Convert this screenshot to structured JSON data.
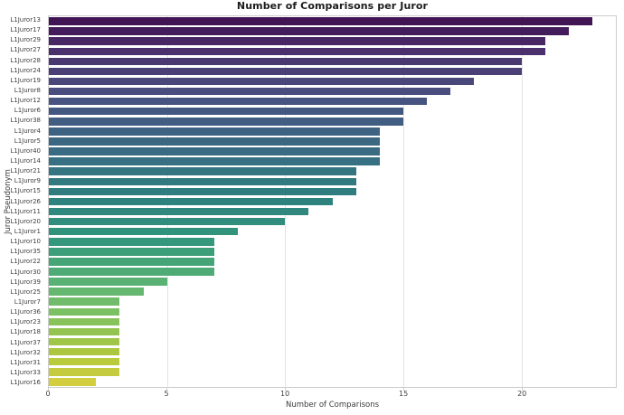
{
  "title": "Number of Comparisons per Juror",
  "colors": {
    "background": "#ffffff",
    "plot_border": "#cccccc",
    "gridline": "#e4e4e4",
    "title": "#1c1c1c",
    "tick_label": "#404040",
    "axis_label": "#3a3a3a"
  },
  "chart_data": {
    "type": "bar",
    "orientation": "horizontal",
    "title": "Number of Comparisons per Juror",
    "xlabel": "Number of Comparisons",
    "ylabel": "Juror Pseudonym",
    "xlim": [
      0,
      24
    ],
    "xticks": [
      0,
      5,
      10,
      15,
      20
    ],
    "grid": true,
    "legend": false,
    "colormap": "viridis",
    "saturation": 0.75,
    "categories": [
      "L1Juror13",
      "L1Juror17",
      "L1Juror29",
      "L1Juror27",
      "L1Juror28",
      "L1Juror24",
      "L1Juror19",
      "L1Juror8",
      "L1Juror12",
      "L1Juror6",
      "L1Juror38",
      "L1Juror4",
      "L1Juror5",
      "L1Juror40",
      "L1Juror14",
      "L1Juror21",
      "L1Juror9",
      "L1Juror15",
      "L1Juror26",
      "L1Juror11",
      "L1Juror20",
      "L1Juror1",
      "L1Juror10",
      "L1Juror35",
      "L1Juror22",
      "L1Juror30",
      "L1Juror39",
      "L1Juror25",
      "L1Juror7",
      "L1Juror36",
      "L1Juror23",
      "L1Juror18",
      "L1Juror37",
      "L1Juror32",
      "L1Juror31",
      "L1Juror33",
      "L1Juror16"
    ],
    "values": [
      23,
      22,
      21,
      21,
      20,
      20,
      18,
      17,
      16,
      15,
      15,
      14,
      14,
      14,
      14,
      13,
      13,
      13,
      12,
      11,
      10,
      8,
      7,
      7,
      7,
      7,
      5,
      4,
      3,
      3,
      3,
      3,
      3,
      3,
      3,
      3,
      2
    ],
    "palette": [
      "#450a5d",
      "#461365",
      "#471d6e",
      "#482676",
      "#462e7b",
      "#44377f",
      "#423f84",
      "#404788",
      "#3d4e89",
      "#39558b",
      "#365c8c",
      "#33638d",
      "#306a8d",
      "#2e708e",
      "#2b778e",
      "#287d8e",
      "#26848d",
      "#238a8d",
      "#21918c",
      "#21978a",
      "#229d88",
      "#22a386",
      "#24a983",
      "#2daf7e",
      "#36b578",
      "#3fbb73",
      "#4ac16d",
      "#58c665",
      "#66ca5c",
      "#74cf54",
      "#85d34a",
      "#96d73f",
      "#a8db34",
      "#b9de28",
      "#cbe126",
      "#dbe326",
      "#ece525"
    ]
  }
}
